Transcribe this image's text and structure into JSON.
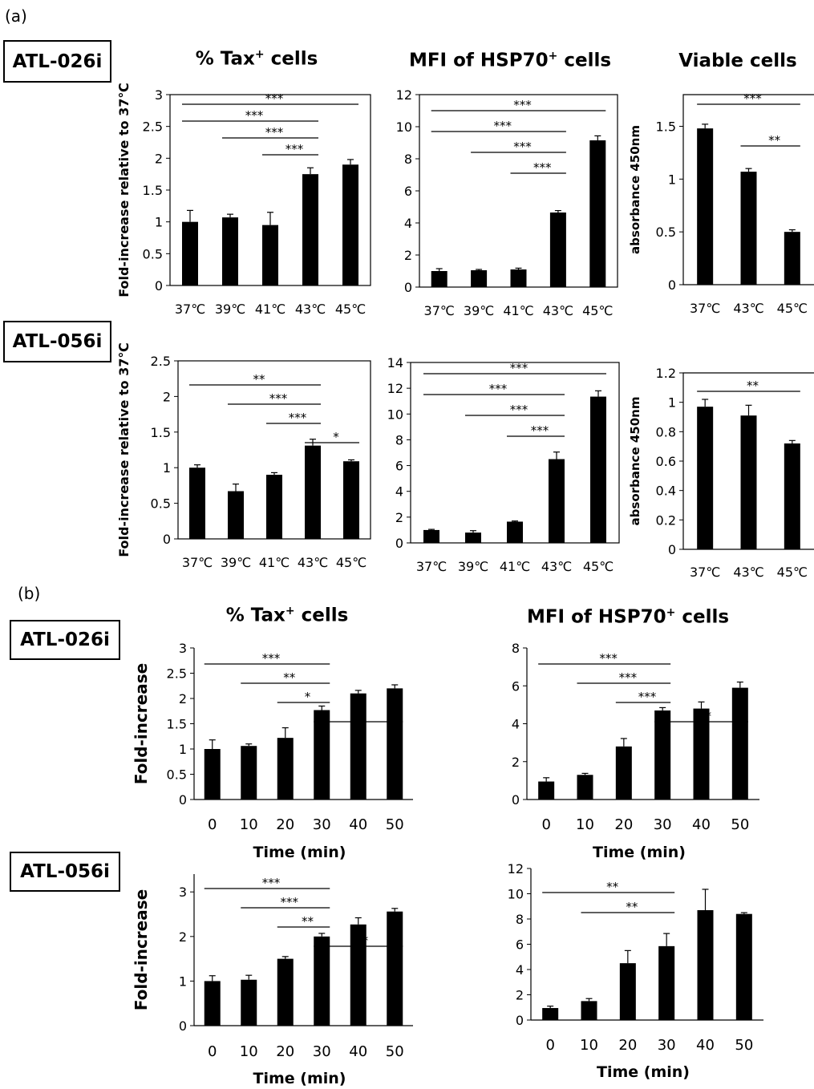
{
  "panel_labels": {
    "a": "(a)",
    "b": "(b)"
  },
  "cell_lines": {
    "top": "ATL-026i",
    "bottom": "ATL-056i"
  },
  "titles": {
    "tax": "% Tax",
    "tax_sup": "+",
    "tax_suffix": " cells",
    "hsp": "MFI of HSP70",
    "hsp_sup": "+",
    "hsp_suffix": " cells",
    "viable": "Viable cells"
  },
  "chart_data": [
    {
      "id": "a1",
      "type": "bar",
      "categories": [
        "37℃",
        "39℃",
        "41℃",
        "43℃",
        "45℃"
      ],
      "values": [
        1.0,
        1.07,
        0.95,
        1.75,
        1.9
      ],
      "errors": [
        0.18,
        0.05,
        0.2,
        0.1,
        0.08
      ],
      "ylim": [
        0,
        3
      ],
      "yticks": [
        "0",
        "0.5",
        "1",
        "1.5",
        "2",
        "2.5",
        "3"
      ],
      "ylabel": "Fold-increase  relative to 37℃",
      "significance": [
        {
          "from": 0,
          "to": 4,
          "label": "***"
        },
        {
          "from": 0,
          "to": 3,
          "label": "***"
        },
        {
          "from": 1,
          "to": 3,
          "label": "***"
        },
        {
          "from": 2,
          "to": 3,
          "label": "***"
        }
      ]
    },
    {
      "id": "a2",
      "type": "bar",
      "categories": [
        "37℃",
        "39℃",
        "41℃",
        "43℃",
        "45℃"
      ],
      "values": [
        1.0,
        1.05,
        1.1,
        4.65,
        9.15
      ],
      "errors": [
        0.15,
        0.05,
        0.08,
        0.12,
        0.28
      ],
      "ylim": [
        0,
        12
      ],
      "yticks": [
        "0",
        "2",
        "4",
        "6",
        "8",
        "10",
        "12"
      ],
      "ylabel": "",
      "significance": [
        {
          "from": 0,
          "to": 4,
          "label": "***"
        },
        {
          "from": 0,
          "to": 3,
          "label": "***"
        },
        {
          "from": 1,
          "to": 3,
          "label": "***"
        },
        {
          "from": 2,
          "to": 3,
          "label": "***"
        }
      ]
    },
    {
      "id": "a3",
      "type": "bar",
      "categories": [
        "37℃",
        "43℃",
        "45℃"
      ],
      "values": [
        1.48,
        1.07,
        0.5
      ],
      "errors": [
        0.04,
        0.03,
        0.02
      ],
      "ylim": [
        0,
        1.8
      ],
      "yticks": [
        "0",
        "0.5",
        "1",
        "1.5"
      ],
      "ylabel": "absorbance 450nm",
      "significance": [
        {
          "from": 0,
          "to": 2,
          "label": "***"
        },
        {
          "from": 1,
          "to": 2,
          "label": "**"
        }
      ]
    },
    {
      "id": "a4",
      "type": "bar",
      "categories": [
        "37℃",
        "39℃",
        "41℃",
        "43℃",
        "45℃"
      ],
      "values": [
        1.0,
        0.67,
        0.9,
        1.31,
        1.09
      ],
      "errors": [
        0.04,
        0.1,
        0.03,
        0.09,
        0.02
      ],
      "ylim": [
        0,
        2.5
      ],
      "yticks": [
        "0",
        "0.5",
        "1",
        "1.5",
        "2",
        "2.5"
      ],
      "ylabel": "Fold-increase  relative to  37℃",
      "significance": [
        {
          "from": 0,
          "to": 3,
          "label": "**"
        },
        {
          "from": 1,
          "to": 3,
          "label": "***"
        },
        {
          "from": 2,
          "to": 3,
          "label": "***"
        },
        {
          "from": 3,
          "to": 4,
          "label": "*"
        }
      ]
    },
    {
      "id": "a5",
      "type": "bar",
      "categories": [
        "37℃",
        "39℃",
        "41℃",
        "43℃",
        "45℃"
      ],
      "values": [
        1.0,
        0.8,
        1.65,
        6.5,
        11.35
      ],
      "errors": [
        0.05,
        0.15,
        0.05,
        0.55,
        0.45
      ],
      "ylim": [
        0,
        14
      ],
      "yticks": [
        "0",
        "2",
        "4",
        "6",
        "8",
        "10",
        "12",
        "14"
      ],
      "ylabel": "",
      "significance": [
        {
          "from": 0,
          "to": 4,
          "label": "***"
        },
        {
          "from": 0,
          "to": 3,
          "label": "***"
        },
        {
          "from": 1,
          "to": 3,
          "label": "***"
        },
        {
          "from": 2,
          "to": 3,
          "label": "***"
        }
      ]
    },
    {
      "id": "a6",
      "type": "bar",
      "categories": [
        "37℃",
        "43℃",
        "45℃"
      ],
      "values": [
        0.97,
        0.91,
        0.72
      ],
      "errors": [
        0.05,
        0.07,
        0.02
      ],
      "ylim": [
        0,
        1.2
      ],
      "yticks": [
        "0",
        "0.2",
        "0.4",
        "0.6",
        "0.8",
        "1",
        "1.2"
      ],
      "ylabel": "absorbance 450nm",
      "significance": [
        {
          "from": 0,
          "to": 2,
          "label": "**"
        }
      ]
    },
    {
      "id": "b1",
      "type": "bar",
      "categories": [
        "0",
        "10",
        "20",
        "30",
        "40",
        "50"
      ],
      "values": [
        1.0,
        1.06,
        1.22,
        1.77,
        2.1,
        2.2
      ],
      "errors": [
        0.18,
        0.04,
        0.2,
        0.08,
        0.06,
        0.07
      ],
      "ylim": [
        0,
        3
      ],
      "yticks": [
        "0",
        "0.5",
        "1",
        "1.5",
        "2",
        "2.5",
        "3"
      ],
      "ylabel": "Fold-increase",
      "xlabel": "Time (min)",
      "significance": [
        {
          "from": 0,
          "to": 3,
          "label": "***"
        },
        {
          "from": 1,
          "to": 3,
          "label": "**"
        },
        {
          "from": 2,
          "to": 3,
          "label": "*"
        },
        {
          "from": 3,
          "to": 5,
          "label": "*"
        }
      ]
    },
    {
      "id": "b2",
      "type": "bar",
      "categories": [
        "0",
        "10",
        "20",
        "30",
        "40",
        "50"
      ],
      "values": [
        0.95,
        1.3,
        2.8,
        4.7,
        4.8,
        5.9
      ],
      "errors": [
        0.2,
        0.08,
        0.42,
        0.15,
        0.35,
        0.3
      ],
      "ylim": [
        0,
        8
      ],
      "yticks": [
        "0",
        "2",
        "4",
        "6",
        "8"
      ],
      "ylabel": "",
      "xlabel": "Time (min)",
      "significance": [
        {
          "from": 0,
          "to": 3,
          "label": "***"
        },
        {
          "from": 1,
          "to": 3,
          "label": "***"
        },
        {
          "from": 2,
          "to": 3,
          "label": "***"
        },
        {
          "from": 3,
          "to": 5,
          "label": "**"
        }
      ]
    },
    {
      "id": "b3",
      "type": "bar",
      "categories": [
        "0",
        "10",
        "20",
        "30",
        "40",
        "50"
      ],
      "values": [
        1.0,
        1.03,
        1.5,
        2.0,
        2.27,
        2.56
      ],
      "errors": [
        0.12,
        0.1,
        0.05,
        0.07,
        0.15,
        0.07
      ],
      "ylim": [
        0,
        3.4
      ],
      "yticks": [
        "0",
        "1",
        "2",
        "3"
      ],
      "ylabel": "Fold-increase",
      "xlabel": "Time (min)",
      "significance": [
        {
          "from": 0,
          "to": 3,
          "label": "***"
        },
        {
          "from": 1,
          "to": 3,
          "label": "***"
        },
        {
          "from": 2,
          "to": 3,
          "label": "**"
        },
        {
          "from": 3,
          "to": 5,
          "label": "**"
        }
      ]
    },
    {
      "id": "b4",
      "type": "bar",
      "categories": [
        "0",
        "10",
        "20",
        "30",
        "40",
        "50"
      ],
      "values": [
        0.95,
        1.5,
        4.5,
        5.85,
        8.7,
        8.4
      ],
      "errors": [
        0.15,
        0.2,
        1.0,
        1.0,
        1.65,
        0.1
      ],
      "ylim": [
        0,
        12
      ],
      "yticks": [
        "0",
        "2",
        "4",
        "6",
        "8",
        "10",
        "12"
      ],
      "ylabel": "",
      "xlabel": "Time (min)",
      "significance": [
        {
          "from": 0,
          "to": 3,
          "label": "**"
        },
        {
          "from": 1,
          "to": 3,
          "label": "**"
        }
      ]
    }
  ]
}
